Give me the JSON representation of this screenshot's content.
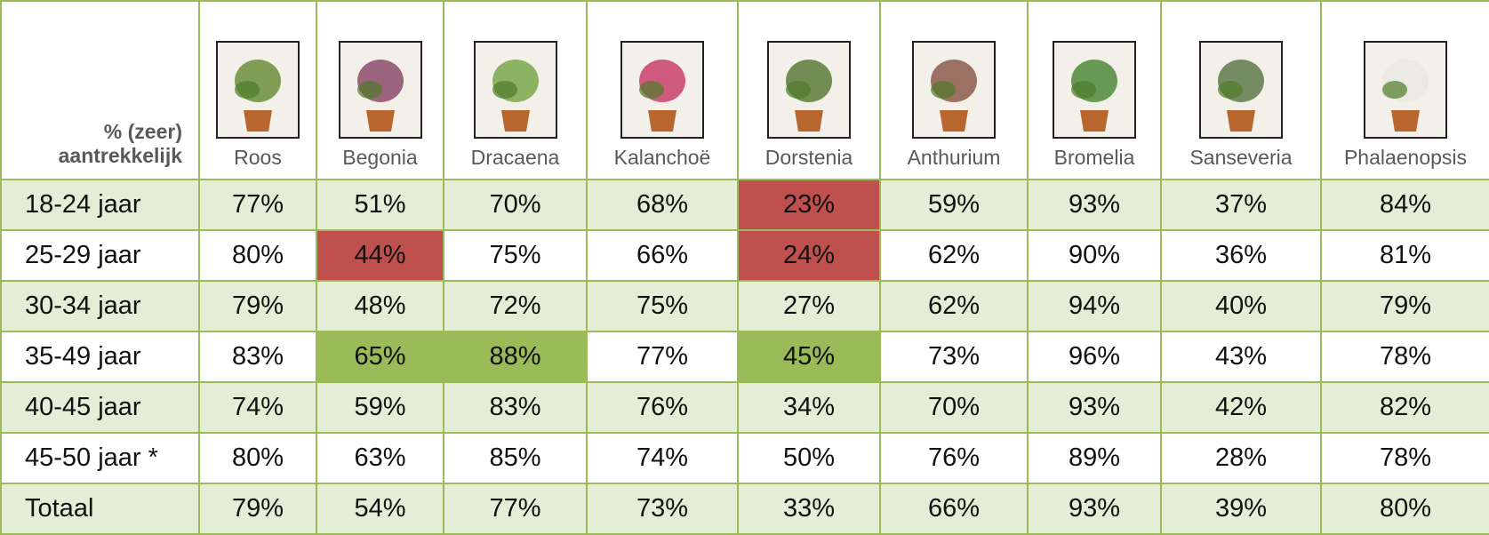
{
  "table": {
    "corner": [
      "% (zeer)",
      "aantrekkelijk"
    ],
    "columns": [
      "Roos",
      "Begonia",
      "Dracaena",
      "Kalanchoë",
      "Dorstenia",
      "Anthurium",
      "Bromelia",
      "Sanseveria",
      "Phalaenopsis"
    ],
    "rows": [
      {
        "label": "18-24 jaar",
        "values": [
          "77%",
          "51%",
          "70%",
          "68%",
          "23%",
          "59%",
          "93%",
          "37%",
          "84%"
        ]
      },
      {
        "label": "25-29 jaar",
        "values": [
          "80%",
          "44%",
          "75%",
          "66%",
          "24%",
          "62%",
          "90%",
          "36%",
          "81%"
        ]
      },
      {
        "label": "30-34 jaar",
        "values": [
          "79%",
          "48%",
          "72%",
          "75%",
          "27%",
          "62%",
          "94%",
          "40%",
          "79%"
        ]
      },
      {
        "label": "35-49 jaar",
        "values": [
          "83%",
          "65%",
          "88%",
          "77%",
          "45%",
          "73%",
          "96%",
          "43%",
          "78%"
        ]
      },
      {
        "label": "40-45 jaar",
        "values": [
          "74%",
          "59%",
          "83%",
          "76%",
          "34%",
          "70%",
          "93%",
          "42%",
          "82%"
        ]
      },
      {
        "label": "45-50 jaar *",
        "values": [
          "80%",
          "63%",
          "85%",
          "74%",
          "50%",
          "76%",
          "89%",
          "28%",
          "78%"
        ]
      },
      {
        "label": "Totaal",
        "values": [
          "79%",
          "54%",
          "77%",
          "73%",
          "33%",
          "66%",
          "93%",
          "39%",
          "80%"
        ]
      }
    ]
  }
}
